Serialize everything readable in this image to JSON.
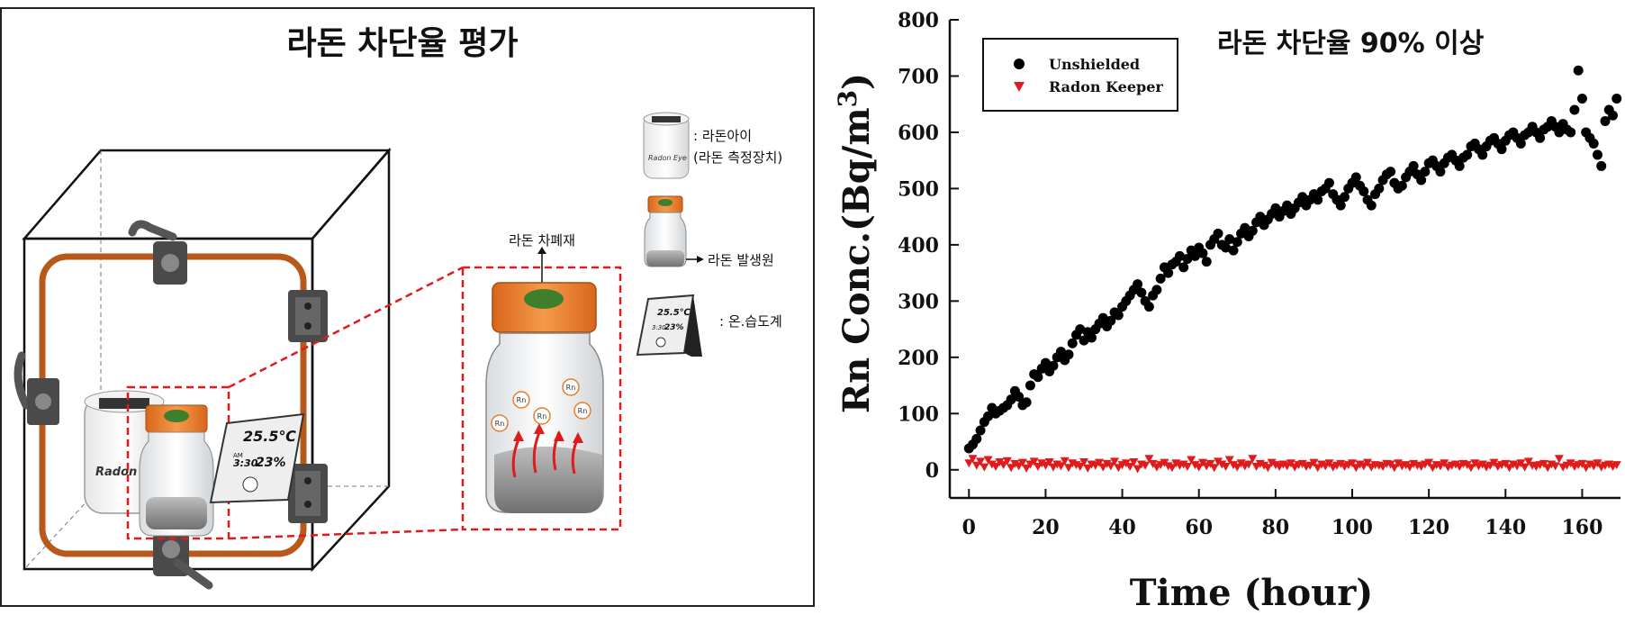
{
  "diagram": {
    "title": "라돈 차단율 평가",
    "legend": {
      "radon_eye_line1": ": 라돈아이",
      "radon_eye_line2": "(라돈 측정장치)",
      "radon_source": "라돈 발생원",
      "thermo_hygrometer": ": 온.습도계"
    },
    "shield_label": "라돈 차폐재",
    "device_text": "Radon Eye",
    "device_text_small": "Radon Eye",
    "meter_temp": "25.5℃",
    "meter_am": "AM",
    "meter_time": "3:30",
    "meter_humidity": "23%",
    "rn_label": "Rn",
    "colors": {
      "orange": "#e87d2c",
      "frame": "#b8581b",
      "cap_green": "#3f7f2b",
      "dash_red": "#e01b1b"
    }
  },
  "chart_data": {
    "type": "scatter",
    "annotation": "라돈 차단율 90% 이상",
    "xlabel": "Time (hour)",
    "ylabel": "Rn Conc.(Bq/m³)",
    "xlim": [
      -5,
      170
    ],
    "ylim": [
      -50,
      800
    ],
    "xticks": [
      0,
      20,
      40,
      60,
      80,
      100,
      120,
      140,
      160
    ],
    "yticks": [
      0,
      100,
      200,
      300,
      400,
      500,
      600,
      700,
      800
    ],
    "legend_position": "top-left",
    "series": [
      {
        "name": "Unshielded",
        "marker": "circle",
        "color": "#000000",
        "x": [
          0,
          1,
          2,
          3,
          4,
          5,
          6,
          7,
          8,
          9,
          10,
          11,
          12,
          13,
          14,
          15,
          16,
          17,
          18,
          19,
          20,
          21,
          22,
          23,
          24,
          25,
          26,
          27,
          28,
          29,
          30,
          31,
          32,
          33,
          34,
          35,
          36,
          37,
          38,
          39,
          40,
          41,
          42,
          43,
          44,
          45,
          46,
          47,
          48,
          49,
          50,
          51,
          52,
          53,
          54,
          55,
          56,
          57,
          58,
          59,
          60,
          61,
          62,
          63,
          64,
          65,
          66,
          67,
          68,
          69,
          70,
          71,
          72,
          73,
          74,
          75,
          76,
          77,
          78,
          79,
          80,
          81,
          82,
          83,
          84,
          85,
          86,
          87,
          88,
          89,
          90,
          91,
          92,
          93,
          94,
          95,
          96,
          97,
          98,
          99,
          100,
          101,
          102,
          103,
          104,
          105,
          106,
          107,
          108,
          109,
          110,
          111,
          112,
          113,
          114,
          115,
          116,
          117,
          118,
          119,
          120,
          121,
          122,
          123,
          124,
          125,
          126,
          127,
          128,
          129,
          130,
          131,
          132,
          133,
          134,
          135,
          136,
          137,
          138,
          139,
          140,
          141,
          142,
          143,
          144,
          145,
          146,
          147,
          148,
          149,
          150,
          151,
          152,
          153,
          154,
          155,
          156,
          157,
          158,
          159,
          160,
          161,
          162,
          163,
          164,
          165,
          166,
          167,
          168,
          169
        ],
        "y": [
          38,
          45,
          55,
          70,
          85,
          95,
          110,
          100,
          105,
          110,
          115,
          125,
          140,
          130,
          115,
          120,
          150,
          170,
          165,
          180,
          190,
          175,
          185,
          200,
          210,
          195,
          205,
          225,
          240,
          250,
          230,
          245,
          235,
          250,
          260,
          270,
          255,
          265,
          280,
          275,
          290,
          300,
          310,
          320,
          330,
          315,
          300,
          290,
          310,
          320,
          340,
          360,
          350,
          365,
          370,
          380,
          360,
          375,
          390,
          380,
          395,
          385,
          370,
          400,
          410,
          420,
          400,
          395,
          410,
          390,
          405,
          420,
          430,
          415,
          425,
          440,
          450,
          435,
          445,
          455,
          465,
          450,
          460,
          470,
          455,
          465,
          475,
          485,
          470,
          480,
          490,
          480,
          495,
          500,
          510,
          490,
          480,
          470,
          485,
          500,
          510,
          520,
          505,
          495,
          480,
          470,
          490,
          500,
          515,
          525,
          530,
          510,
          500,
          505,
          520,
          530,
          540,
          525,
          515,
          530,
          545,
          550,
          540,
          530,
          545,
          555,
          560,
          550,
          540,
          555,
          560,
          575,
          580,
          570,
          560,
          575,
          585,
          590,
          580,
          570,
          585,
          595,
          600,
          590,
          580,
          595,
          600,
          610,
          600,
          590,
          605,
          610,
          620,
          610,
          600,
          615,
          605,
          600,
          640,
          710,
          660,
          600,
          590,
          580,
          560,
          540,
          620,
          640,
          630,
          660
        ]
      },
      {
        "name": "Radon Keeper",
        "marker": "triangle-down",
        "color": "#e01b1b",
        "x": [
          0,
          1,
          2,
          3,
          4,
          5,
          6,
          7,
          8,
          9,
          10,
          11,
          12,
          13,
          14,
          15,
          16,
          17,
          18,
          19,
          20,
          21,
          22,
          23,
          24,
          25,
          26,
          27,
          28,
          29,
          30,
          31,
          32,
          33,
          34,
          35,
          36,
          37,
          38,
          39,
          40,
          41,
          42,
          43,
          44,
          45,
          46,
          47,
          48,
          49,
          50,
          51,
          52,
          53,
          54,
          55,
          56,
          57,
          58,
          59,
          60,
          61,
          62,
          63,
          64,
          65,
          66,
          67,
          68,
          69,
          70,
          71,
          72,
          73,
          74,
          75,
          76,
          77,
          78,
          79,
          80,
          81,
          82,
          83,
          84,
          85,
          86,
          87,
          88,
          89,
          90,
          91,
          92,
          93,
          94,
          95,
          96,
          97,
          98,
          99,
          100,
          101,
          102,
          103,
          104,
          105,
          106,
          107,
          108,
          109,
          110,
          111,
          112,
          113,
          114,
          115,
          116,
          117,
          118,
          119,
          120,
          121,
          122,
          123,
          124,
          125,
          126,
          127,
          128,
          129,
          130,
          131,
          132,
          133,
          134,
          135,
          136,
          137,
          138,
          139,
          140,
          141,
          142,
          143,
          144,
          145,
          146,
          147,
          148,
          149,
          150,
          151,
          152,
          153,
          154,
          155,
          156,
          157,
          158,
          159,
          160,
          161,
          162,
          163,
          164,
          165,
          166,
          167,
          168,
          169
        ],
        "y": [
          12,
          20,
          8,
          15,
          5,
          18,
          10,
          6,
          14,
          9,
          16,
          4,
          11,
          7,
          13,
          3,
          10,
          15,
          6,
          12,
          8,
          14,
          5,
          10,
          7,
          16,
          4,
          12,
          9,
          6,
          14,
          3,
          10,
          8,
          13,
          5,
          11,
          7,
          15,
          4,
          9,
          12,
          6,
          14,
          2,
          10,
          8,
          20,
          11,
          5,
          9,
          13,
          7,
          4,
          12,
          8,
          10,
          6,
          18,
          9,
          5,
          13,
          7,
          11,
          4,
          15,
          10,
          6,
          18,
          9,
          5,
          12,
          7,
          10,
          20,
          6,
          11,
          8,
          4,
          13,
          9,
          6,
          10,
          7,
          12,
          5,
          9,
          11,
          6,
          8,
          13,
          4,
          10,
          7,
          12,
          5,
          8,
          11,
          6,
          9,
          12,
          4,
          10,
          7,
          13,
          5,
          9,
          8,
          6,
          11,
          10,
          4,
          12,
          7,
          9,
          5,
          11,
          8,
          6,
          10,
          13,
          4,
          9,
          7,
          12,
          5,
          8,
          10,
          6,
          11,
          9,
          4,
          12,
          7,
          10,
          5,
          8,
          13,
          6,
          9,
          11,
          4,
          10,
          7,
          12,
          5,
          15,
          8,
          6,
          9,
          11,
          4,
          10,
          7,
          20,
          5,
          8,
          12,
          6,
          9,
          11,
          4,
          10,
          7,
          12,
          5,
          8,
          10,
          6,
          9
        ]
      }
    ]
  }
}
